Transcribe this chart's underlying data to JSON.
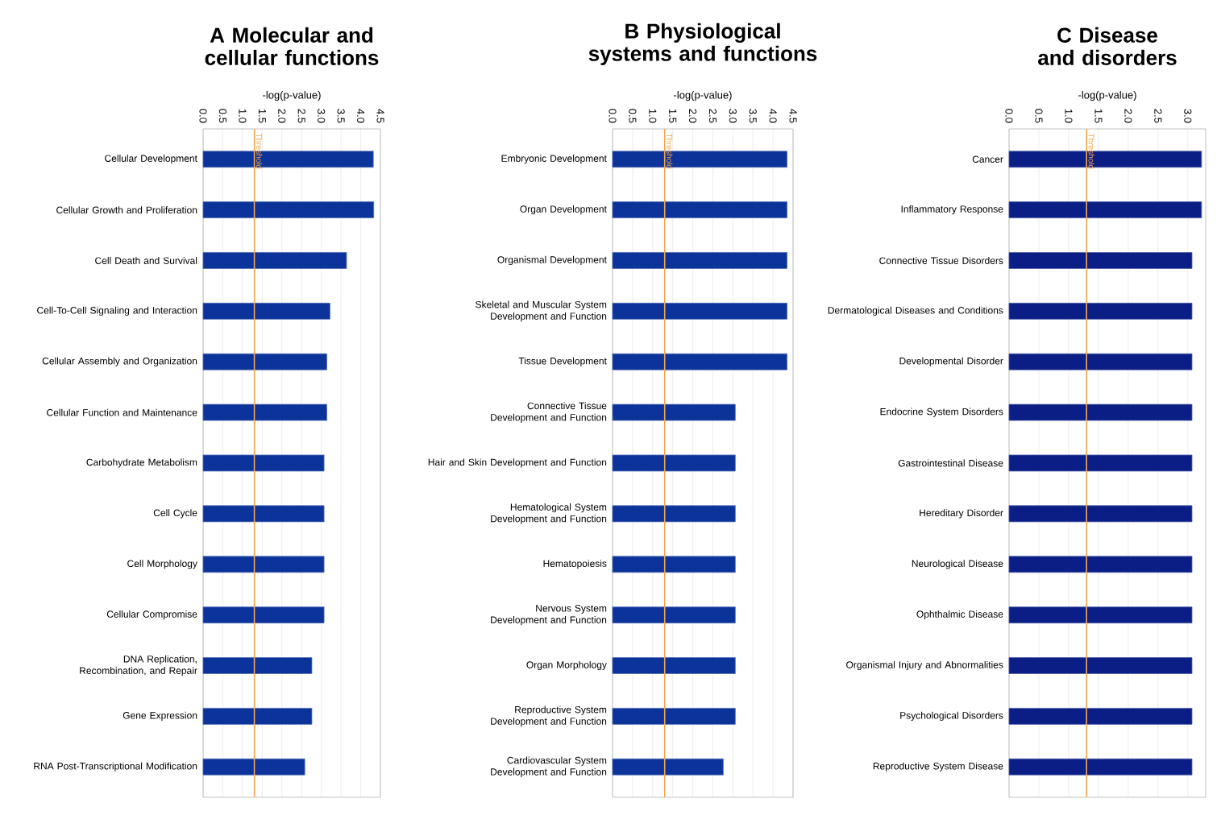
{
  "chart_data": [
    {
      "type": "bar",
      "orientation": "horizontal",
      "title": "A Molecular and cellular functions",
      "xlabel": "-log(p-value)",
      "categories": [
        "Cellular Development",
        "Cellular Growth and Proliferation",
        "Cell Death and Survival",
        "Cell-To-Cell Signaling and Interaction",
        "Cellular Assembly and Organization",
        "Cellular Function and Maintenance",
        "Carbohydrate Metabolism",
        "Cell Cycle",
        "Cell Morphology",
        "Cellular Compromise",
        "DNA Replication, Recombination, and Repair",
        "Gene Expression",
        "RNA Post-Transcriptional Modification"
      ],
      "values": [
        4.32,
        4.33,
        3.64,
        3.22,
        3.14,
        3.14,
        3.07,
        3.07,
        3.07,
        3.07,
        2.76,
        2.76,
        2.58
      ],
      "color": "#0b3399",
      "xlim": [
        0,
        4.5
      ],
      "xticks": [
        {
          "value": 0,
          "label": "0.0"
        },
        {
          "value": 0.5,
          "label": "0.5"
        },
        {
          "value": 1,
          "label": "1.0"
        },
        {
          "value": 1.5,
          "label": "1.5"
        },
        {
          "value": 2,
          "label": "2.0"
        },
        {
          "value": 2.5,
          "label": "2.5"
        },
        {
          "value": 3,
          "label": "3.0"
        },
        {
          "value": 3.5,
          "label": "3.5"
        },
        {
          "value": 4,
          "label": "4.0"
        },
        {
          "value": 4.5,
          "label": "4.5"
        }
      ],
      "grid": "x",
      "ref_lines": [
        {
          "axis": "x",
          "value": 1.3,
          "label": "Threshold",
          "color": "#f5a54a"
        }
      ]
    },
    {
      "type": "bar",
      "orientation": "horizontal",
      "title": "B Physiological systems and functions",
      "xlabel": "-log(p-value)",
      "categories": [
        "Embryonic Development",
        "Organ Development",
        "Organismal Development",
        "Skeletal and Muscular System Development and Function",
        "Tissue Development",
        "Connective Tissue Development and Function",
        "Hair and Skin Development and Function",
        "Hematological System Development and Function",
        "Hematopoiesis",
        "Nervous System Development and Function",
        "Organ Morphology",
        "Reproductive System Development and Function",
        "Cardiovascular System Development and Function"
      ],
      "values": [
        4.35,
        4.35,
        4.35,
        4.35,
        4.35,
        3.06,
        3.06,
        3.06,
        3.06,
        3.06,
        3.06,
        3.06,
        2.76
      ],
      "color": "#0b3399",
      "xlim": [
        0,
        4.5
      ],
      "xticks": [
        {
          "value": 0,
          "label": "0.0"
        },
        {
          "value": 0.5,
          "label": "0.5"
        },
        {
          "value": 1,
          "label": "1.0"
        },
        {
          "value": 1.5,
          "label": "1.5"
        },
        {
          "value": 2,
          "label": "2.0"
        },
        {
          "value": 2.5,
          "label": "2.5"
        },
        {
          "value": 3,
          "label": "3.0"
        },
        {
          "value": 3.5,
          "label": "3.5"
        },
        {
          "value": 4,
          "label": "4.0"
        },
        {
          "value": 4.5,
          "label": "4.5"
        }
      ],
      "grid": "x",
      "ref_lines": [
        {
          "axis": "x",
          "value": 1.3,
          "label": "Threshold",
          "color": "#f5a54a"
        }
      ]
    },
    {
      "type": "bar",
      "orientation": "horizontal",
      "title": "C Disease and disorders",
      "xlabel": "-log(p-value)",
      "categories": [
        "Cancer",
        "Inflammatory Response",
        "Connective Tissue Disorders",
        "Dermatological Diseases and Conditions",
        "Developmental Disorder",
        "Endocrine System Disorders",
        "Gastrointestinal Disease",
        "Hereditary Disorder",
        "Neurological Disease",
        "Ophthalmic Disease",
        "Organismal Injury and Abnormalities",
        "Psychological Disorders",
        "Reproductive System Disease"
      ],
      "values": [
        3.23,
        3.23,
        3.07,
        3.07,
        3.07,
        3.07,
        3.07,
        3.07,
        3.07,
        3.07,
        3.07,
        3.07,
        3.07
      ],
      "color": "#0a1e86",
      "xlim": [
        0,
        3.3
      ],
      "xticks": [
        {
          "value": 0,
          "label": "0.0"
        },
        {
          "value": 0.5,
          "label": "0.5"
        },
        {
          "value": 1,
          "label": "1.0"
        },
        {
          "value": 1.5,
          "label": "1.5"
        },
        {
          "value": 2,
          "label": "2.0"
        },
        {
          "value": 2.5,
          "label": "2.5"
        },
        {
          "value": 3,
          "label": "3.0"
        }
      ],
      "grid": "x",
      "ref_lines": [
        {
          "axis": "x",
          "value": 1.3,
          "label": "Threshold",
          "color": "#f5a54a"
        }
      ]
    }
  ]
}
